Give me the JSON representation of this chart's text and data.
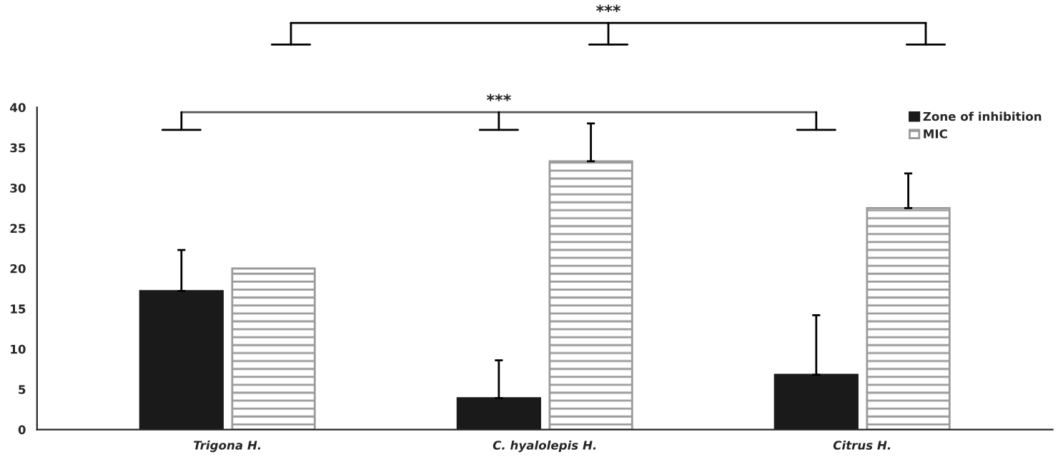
{
  "chart_data": {
    "type": "bar",
    "categories": [
      "Trigona H.",
      "C. hyalolepis H.",
      "Citrus H."
    ],
    "series": [
      {
        "name": "Zone of inhibition",
        "color": "#1a1a1a",
        "values": [
          17.2,
          3.9,
          6.8
        ],
        "errors": [
          5.1,
          4.7,
          7.4
        ]
      },
      {
        "name": "MIC",
        "color": "#9a9a9a",
        "values": [
          20,
          33.3,
          27.5
        ],
        "errors": [
          null,
          4.7,
          4.3
        ]
      }
    ],
    "ylim": [
      0,
      40
    ],
    "yticks": [
      0,
      5,
      10,
      15,
      20,
      25,
      30,
      35,
      40
    ],
    "annotations": [
      "***",
      "***"
    ],
    "grid": false,
    "legend": "top right"
  }
}
